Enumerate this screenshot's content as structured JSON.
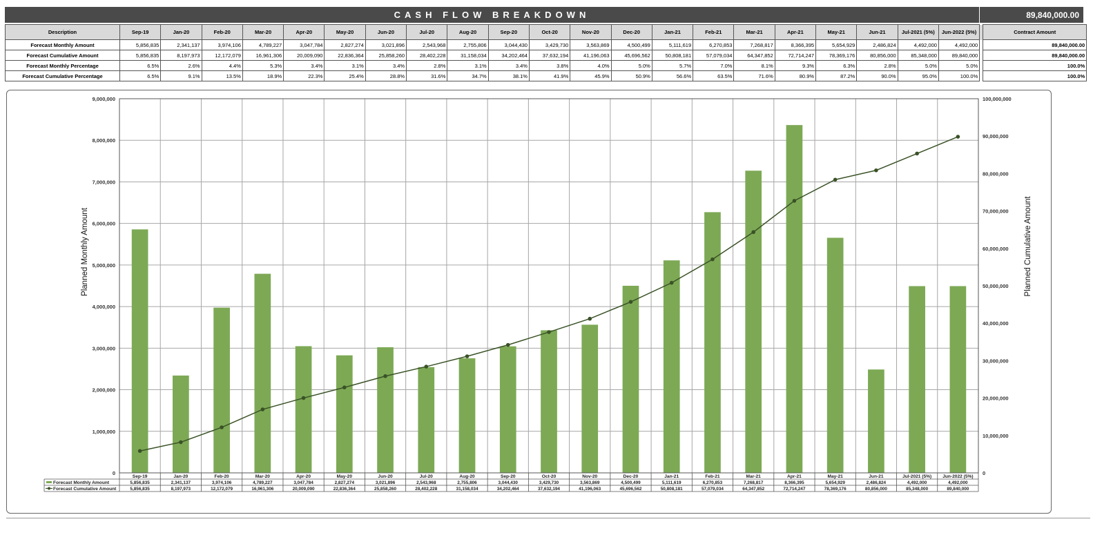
{
  "header": {
    "title": "CASH FLOW BREAKDOWN",
    "total": "89,840,000.00"
  },
  "table": {
    "description_header": "Description",
    "contract_header": "Contract Amount",
    "periods": [
      "Sep-19",
      "Jan-20",
      "Feb-20",
      "Mar-20",
      "Apr-20",
      "May-20",
      "Jun-20",
      "Jul-20",
      "Aug-20",
      "Sep-20",
      "Oct-20",
      "Nov-20",
      "Dec-20",
      "Jan-21",
      "Feb-21",
      "Mar-21",
      "Apr-21",
      "May-21",
      "Jun-21",
      "Jul-2021 (5%)",
      "Jun-2022 (5%)"
    ],
    "rows": [
      {
        "label": "Forecast Monthly Amount",
        "values": [
          "5,856,835",
          "2,341,137",
          "3,974,106",
          "4,789,227",
          "3,047,784",
          "2,827,274",
          "3,021,896",
          "2,543,968",
          "2,755,806",
          "3,044,430",
          "3,429,730",
          "3,563,869",
          "4,500,499",
          "5,111,619",
          "6,270,853",
          "7,268,817",
          "8,366,395",
          "5,654,929",
          "2,486,824",
          "4,492,000",
          "4,492,000"
        ],
        "contract": "89,840,000.00"
      },
      {
        "label": "Forecast Cumulative Amount",
        "values": [
          "5,856,835",
          "8,197,973",
          "12,172,079",
          "16,961,306",
          "20,009,090",
          "22,836,364",
          "25,858,260",
          "28,402,228",
          "31,158,034",
          "34,202,464",
          "37,632,194",
          "41,196,063",
          "45,696,562",
          "50,808,181",
          "57,079,034",
          "64,347,852",
          "72,714,247",
          "78,369,176",
          "80,856,000",
          "85,348,000",
          "89,840,000"
        ],
        "contract": "89,840,000.00"
      },
      {
        "label": "Forecast Monthly Percentage",
        "values": [
          "6.5%",
          "2.6%",
          "4.4%",
          "5.3%",
          "3.4%",
          "3.1%",
          "3.4%",
          "2.8%",
          "3.1%",
          "3.4%",
          "3.8%",
          "4.0%",
          "5.0%",
          "5.7%",
          "7.0%",
          "8.1%",
          "9.3%",
          "6.3%",
          "2.8%",
          "5.0%",
          "5.0%"
        ],
        "contract": "100.0%"
      },
      {
        "label": "Forecast Cumulative Percentage",
        "values": [
          "6.5%",
          "9.1%",
          "13.5%",
          "18.9%",
          "22.3%",
          "25.4%",
          "28.8%",
          "31.6%",
          "34.7%",
          "38.1%",
          "41.9%",
          "45.9%",
          "50.9%",
          "56.6%",
          "63.5%",
          "71.6%",
          "80.9%",
          "87.2%",
          "90.0%",
          "95.0%",
          "100.0%"
        ],
        "contract": "100.0%"
      }
    ]
  },
  "colors": {
    "bar": "#7da955",
    "line": "#3a5226",
    "header_bg": "#4a4a4a",
    "grid": "#a6a6a6"
  },
  "chart_data": {
    "type": "bar",
    "categories": [
      "Sep-19",
      "Jan-20",
      "Feb-20",
      "Mar-20",
      "Apr-20",
      "May-20",
      "Jun-20",
      "Jul-20",
      "Aug-20",
      "Sep-20",
      "Oct-20",
      "Nov-20",
      "Dec-20",
      "Jan-21",
      "Feb-21",
      "Mar-21",
      "Apr-21",
      "May-21",
      "Jun-21",
      "Jul-2021 (5%)",
      "Jun-2022 (5%)"
    ],
    "series": [
      {
        "name": "Forecast Monthly Amount",
        "type": "bar",
        "axis": "left",
        "values": [
          5856835,
          2341137,
          3974106,
          4789227,
          3047784,
          2827274,
          3021896,
          2543968,
          2755806,
          3044430,
          3429730,
          3563869,
          4500499,
          5111619,
          6270853,
          7268817,
          8366395,
          5654929,
          2486824,
          4492000,
          4492000
        ],
        "labels": [
          "5,856,835",
          "2,341,137",
          "3,974,106",
          "4,789,227",
          "3,047,784",
          "2,827,274",
          "3,021,896",
          "2,543,968",
          "2,755,806",
          "3,044,430",
          "3,429,730",
          "3,563,869",
          "4,500,499",
          "5,111,619",
          "6,270,853",
          "7,268,817",
          "8,366,395",
          "5,654,929",
          "2,486,824",
          "4,492,000",
          "4,492,000"
        ]
      },
      {
        "name": "Forecast Cumulative Amount",
        "type": "line",
        "axis": "right",
        "values": [
          5856835,
          8197973,
          12172079,
          16961306,
          20009090,
          22836364,
          25858260,
          28402228,
          31158034,
          34202464,
          37632194,
          41196063,
          45696562,
          50808181,
          57079034,
          64347852,
          72714247,
          78369176,
          80856000,
          85348000,
          89840000
        ],
        "labels": [
          "5,856,835",
          "8,197,973",
          "12,172,079",
          "16,961,306",
          "20,009,090",
          "22,836,364",
          "25,858,260",
          "28,402,228",
          "31,158,034",
          "34,202,464",
          "37,632,194",
          "41,196,063",
          "45,696,562",
          "50,808,181",
          "57,079,034",
          "64,347,852",
          "72,714,247",
          "78,369,176",
          "80,856,000",
          "85,348,000",
          "89,840,000"
        ]
      }
    ],
    "ylabel": "Planned Monthly Amount",
    "y2label": "Planned Cumulative Amount",
    "ylim": [
      0,
      9000000
    ],
    "y2lim": [
      0,
      100000000
    ],
    "yticks": [
      "0",
      "1,000,000",
      "2,000,000",
      "3,000,000",
      "4,000,000",
      "5,000,000",
      "6,000,000",
      "7,000,000",
      "8,000,000",
      "9,000,000"
    ],
    "y2ticks": [
      "0",
      "10,000,000",
      "20,000,000",
      "30,000,000",
      "40,000,000",
      "50,000,000",
      "60,000,000",
      "70,000,000",
      "80,000,000",
      "90,000,000",
      "100,000,000"
    ],
    "grid": true,
    "legend": "data-table"
  }
}
